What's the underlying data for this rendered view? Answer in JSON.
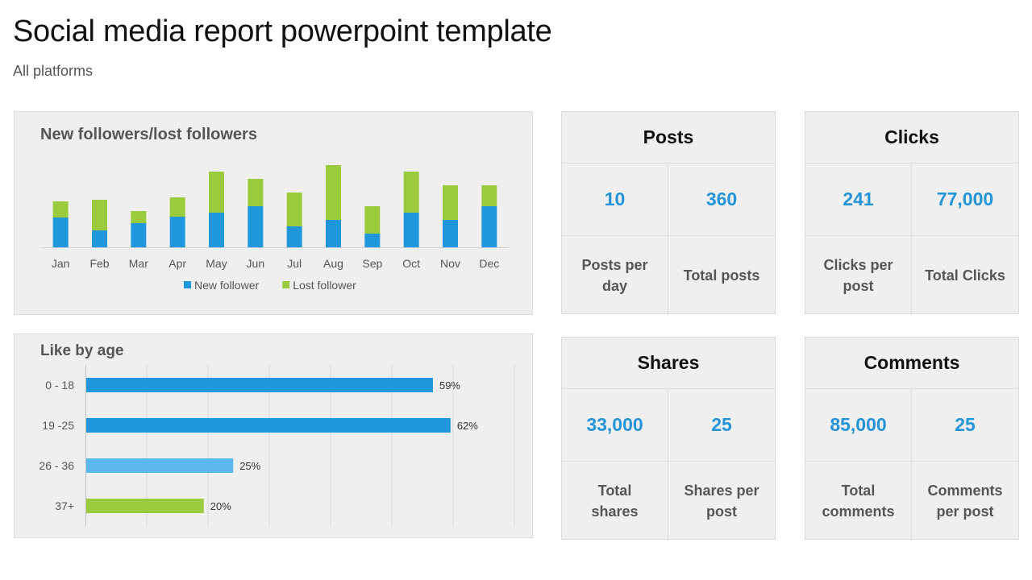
{
  "page": {
    "title": "Social media report powerpoint template",
    "subtitle": "All platforms"
  },
  "colors": {
    "new_follower": "#1f97da",
    "lost_follower": "#9bcb3c",
    "age_light_blue": "#5bb8ec",
    "value_text": "#2494d8"
  },
  "chart_data": [
    {
      "type": "bar",
      "stacked": true,
      "title": "New followers/lost followers",
      "categories": [
        "Jan",
        "Feb",
        "Mar",
        "Apr",
        "May",
        "Jun",
        "Jul",
        "Aug",
        "Sep",
        "Oct",
        "Nov",
        "Dec"
      ],
      "series": [
        {
          "name": "New follower",
          "color": "#1f97da",
          "values": [
            37,
            21,
            30,
            38,
            43,
            51,
            26,
            34,
            17,
            43,
            34,
            51
          ]
        },
        {
          "name": "Lost follower",
          "color": "#9bcb3c",
          "values": [
            20,
            38,
            15,
            24,
            51,
            34,
            42,
            68,
            34,
            51,
            43,
            26
          ]
        }
      ],
      "ylim": [
        0,
        110
      ],
      "legend": "bottom",
      "grid": false
    },
    {
      "type": "bar",
      "orientation": "horizontal",
      "title": "Like by age",
      "categories": [
        "0 - 18",
        "19 -25",
        "26 - 36",
        "37+"
      ],
      "values": [
        59,
        62,
        25,
        20
      ],
      "value_labels": [
        "59%",
        "62%",
        "25%",
        "20%"
      ],
      "colors": [
        "#1f97da",
        "#1f97da",
        "#5bb8ec",
        "#9bcb3c"
      ],
      "xlim": [
        0,
        73
      ],
      "grid": true
    }
  ],
  "cards": {
    "posts": {
      "title": "Posts",
      "value1": "10",
      "label1": "Posts per day",
      "value2": "360",
      "label2": "Total posts"
    },
    "clicks": {
      "title": "Clicks",
      "value1": "241",
      "label1": "Clicks per post",
      "value2": "77,000",
      "label2": "Total Clicks"
    },
    "shares": {
      "title": "Shares",
      "value1": "33,000",
      "label1": "Total shares",
      "value2": "25",
      "label2": "Shares per post"
    },
    "comments": {
      "title": "Comments",
      "value1": "85,000",
      "label1": "Total comments",
      "value2": "25",
      "label2": "Comments per post"
    }
  }
}
